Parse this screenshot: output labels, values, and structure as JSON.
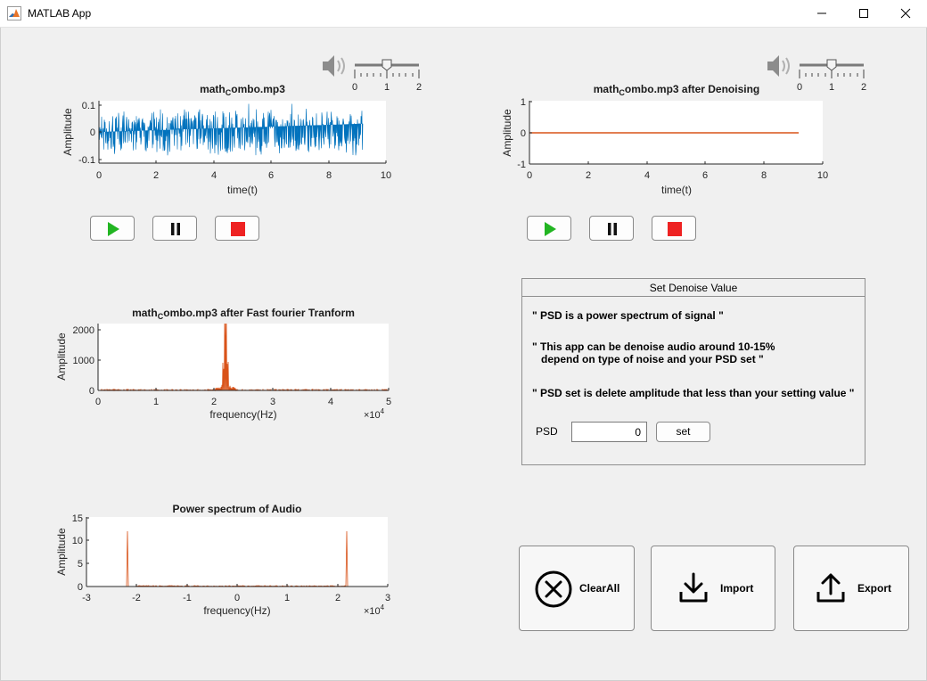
{
  "window": {
    "title": "MATLAB App"
  },
  "colors": {
    "signal_blue": "#0072bd",
    "signal_orange": "#d95319",
    "play_green": "#22b522",
    "stop_red": "#ee2222"
  },
  "plots": {
    "time_original": {
      "title": "math",
      "title_sub": "C",
      "title_rest": "ombo.mp3",
      "ylabel": "Amplitude",
      "xlabel": "time(t)",
      "xticks": [
        "0",
        "2",
        "4",
        "6",
        "8",
        "10"
      ],
      "yticks": [
        "0.1",
        "0",
        "-0.1"
      ]
    },
    "time_denoised": {
      "title": "math",
      "title_sub": "C",
      "title_rest": "ombo.mp3    after  Denoising",
      "ylabel": "Amplitude",
      "xlabel": "time(t)",
      "xticks": [
        "0",
        "2",
        "4",
        "6",
        "8",
        "10"
      ],
      "yticks": [
        "1",
        "0",
        "-1"
      ]
    },
    "fft": {
      "title": "math",
      "title_sub": "C",
      "title_rest": "ombo.mp3    after  Fast  fourier  Tranform",
      "ylabel": "Amplitude",
      "xlabel": "frequency(Hz)",
      "xticks": [
        "0",
        "1",
        "2",
        "3",
        "4",
        "5"
      ],
      "yticks": [
        "2000",
        "1000",
        "0"
      ],
      "exponent": "×10",
      "exponent_power": "4"
    },
    "psd": {
      "title": "Power spectrum of Audio",
      "ylabel": "Amplitude",
      "xlabel": "frequency(Hz)",
      "xticks": [
        "-3",
        "-2",
        "-1",
        "0",
        "1",
        "2",
        "3"
      ],
      "yticks": [
        "15",
        "10",
        "5",
        "0"
      ],
      "exponent": "×10",
      "exponent_power": "4"
    }
  },
  "volume_sliders": [
    {
      "ticks": [
        "0",
        "1",
        "2"
      ],
      "value": 1
    },
    {
      "ticks": [
        "0",
        "1",
        "2"
      ],
      "value": 1
    }
  ],
  "panel": {
    "title": "Set Denoise Value",
    "line1": "\" PSD is a power spectrum of signal \"",
    "line2": "\" This app can be denoise audio around 10-15%\n   depend on type of noise and your PSD set \"",
    "line3": "\" PSD set is delete amplitude that less than your setting value \"",
    "psd_label": "PSD",
    "psd_value": "0",
    "set_label": "set"
  },
  "actions": {
    "clear_label": "ClearAll",
    "import_label": "Import",
    "export_label": "Export"
  }
}
